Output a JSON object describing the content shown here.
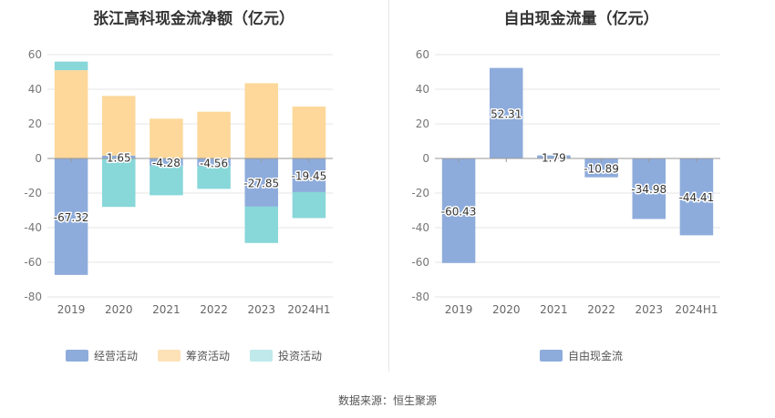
{
  "source": "数据来源：恒生聚源",
  "chart_data": [
    {
      "type": "bar",
      "stacked": true,
      "title": "张江高科现金流净额（亿元）",
      "categories": [
        "2019",
        "2020",
        "2021",
        "2022",
        "2023",
        "2024H1"
      ],
      "ylim": [
        -80,
        60
      ],
      "yticks": [
        60,
        40,
        20,
        0,
        -20,
        -40,
        -60,
        -80
      ],
      "grid": true,
      "legend_position": "bottom",
      "series": [
        {
          "name": "经营活动",
          "color": "#8eacdb",
          "values": [
            -67.32,
            1.65,
            -4.28,
            -4.56,
            -27.85,
            -19.45
          ]
        },
        {
          "name": "筹资活动",
          "color": "#fdd89a",
          "values": [
            51,
            34.5,
            23,
            27,
            43.5,
            30
          ]
        },
        {
          "name": "投资活动",
          "color": "#88d7d9",
          "values": [
            5,
            -28,
            -17,
            -13,
            -21,
            -15
          ]
        }
      ],
      "data_labels": [
        "-67.32",
        "1.65",
        "-4.28",
        "-4.56",
        "-27.85",
        "-19.45"
      ]
    },
    {
      "type": "bar",
      "title": "自由现金流量（亿元）",
      "categories": [
        "2019",
        "2020",
        "2021",
        "2022",
        "2023",
        "2024H1"
      ],
      "ylim": [
        -80,
        60
      ],
      "yticks": [
        60,
        40,
        20,
        0,
        -20,
        -40,
        -60,
        -80
      ],
      "grid": true,
      "legend_position": "bottom",
      "series": [
        {
          "name": "自由现金流",
          "color": "#8eacdb",
          "values": [
            -60.43,
            52.31,
            1.79,
            -10.89,
            -34.98,
            -44.41
          ]
        }
      ],
      "data_labels": [
        "-60.43",
        "52.31",
        "1.79",
        "-10.89",
        "-34.98",
        "-44.41"
      ]
    }
  ]
}
